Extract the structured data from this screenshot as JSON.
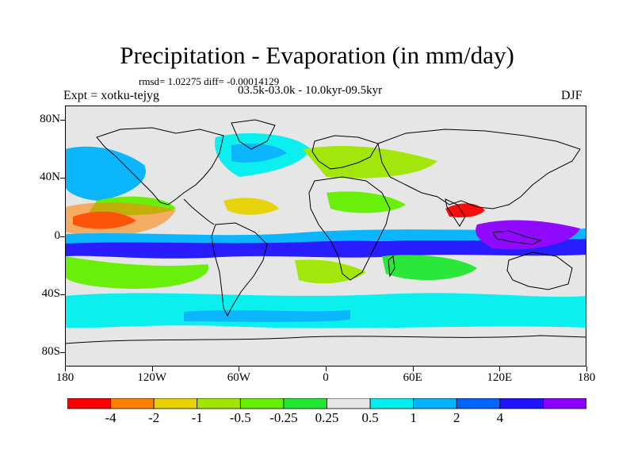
{
  "title": "Precipitation - Evaporation (in mm/day)",
  "stats": "rmsd= 1.02275 diff= -0.00014129",
  "experiment": "Expt = xotku-tejyg",
  "period": "03.5k-03.0k - 10.0kyr-09.5kyr",
  "season": "DJF",
  "y_axis": {
    "ticks": [
      "80N",
      "40N",
      "0",
      "40S",
      "80S"
    ],
    "values": [
      80,
      40,
      0,
      -40,
      -80
    ]
  },
  "x_axis": {
    "ticks": [
      "180",
      "120W",
      "60W",
      "0",
      "60E",
      "120E",
      "180"
    ],
    "values": [
      -180,
      -120,
      -60,
      0,
      60,
      120,
      180
    ]
  },
  "colorbar": {
    "colors": [
      "#ff0000",
      "#ff8000",
      "#e8d200",
      "#a0e600",
      "#64f000",
      "#20e830",
      "#e6e6e6",
      "#00f0f0",
      "#00b4ff",
      "#0064ff",
      "#1e14ff",
      "#8c00ff"
    ],
    "labels": [
      "-4",
      "-2",
      "-1",
      "-0.5",
      "-0.25",
      "0.25",
      "0.5",
      "1",
      "2",
      "4"
    ]
  },
  "map": {
    "background_color": "#e6e6e6",
    "coastline_color": "#000000"
  }
}
